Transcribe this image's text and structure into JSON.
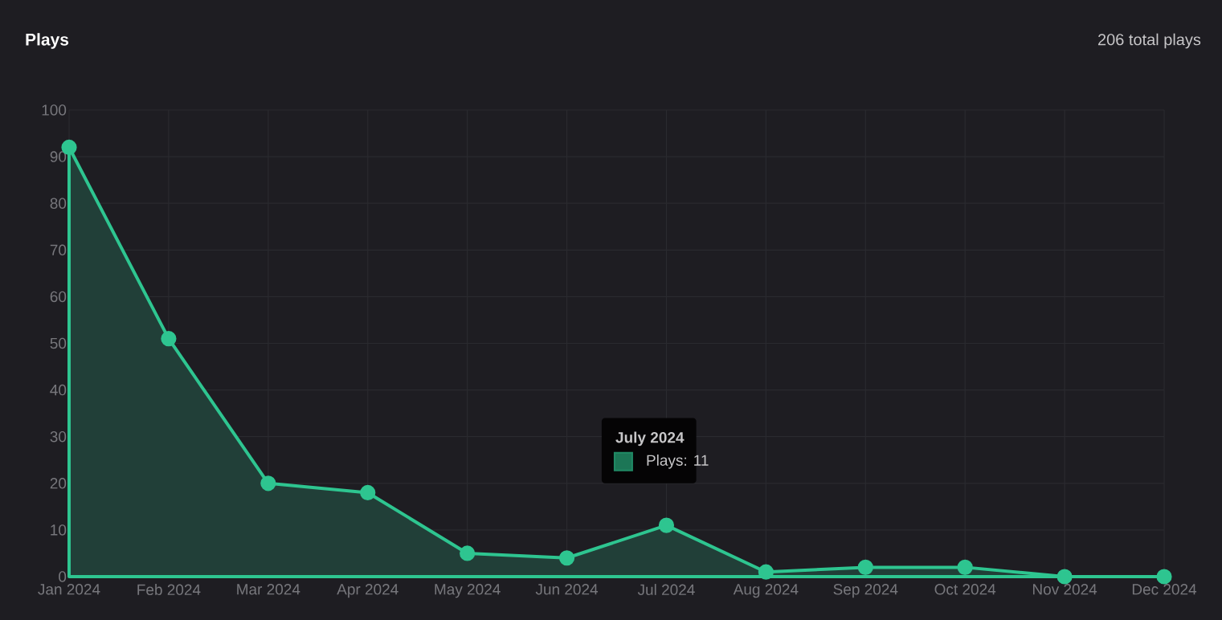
{
  "chart_data": {
    "type": "area",
    "title": "Plays",
    "subtitle": "206 total plays",
    "categories": [
      "Jan 2024",
      "Feb 2024",
      "Mar 2024",
      "Apr 2024",
      "May 2024",
      "Jun 2024",
      "Jul 2024",
      "Aug 2024",
      "Sep 2024",
      "Oct 2024",
      "Nov 2024",
      "Dec 2024"
    ],
    "values": [
      92,
      51,
      20,
      18,
      5,
      4,
      11,
      1,
      2,
      2,
      0,
      0
    ],
    "color": "#2ec590",
    "ylim": [
      0,
      100
    ],
    "yticks": [
      0,
      10,
      20,
      30,
      40,
      50,
      60,
      70,
      80,
      90,
      100
    ],
    "grid": true,
    "marker": "circle",
    "line_style": "solid",
    "annotations": [
      "July 2024",
      "Plays: 11"
    ]
  }
}
